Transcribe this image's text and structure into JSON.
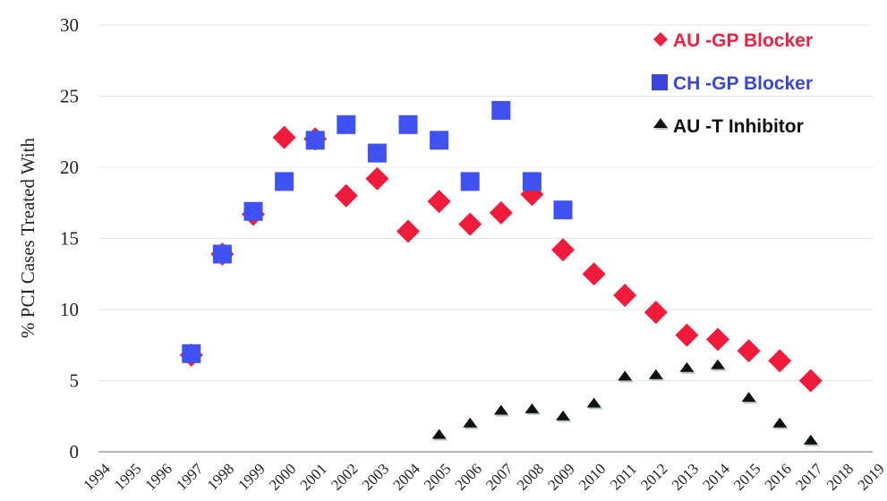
{
  "chart_data": {
    "type": "scatter",
    "xlabel": "",
    "ylabel": "% PCI Cases Treated With",
    "xlim": [
      1994,
      2019
    ],
    "ylim": [
      0,
      30
    ],
    "x_ticks": [
      "1994",
      "1995",
      "1996",
      "1997",
      "1998",
      "1999",
      "2000",
      "2001",
      "2002",
      "2003",
      "2004",
      "2005",
      "2006",
      "2007",
      "2008",
      "2009",
      "2010",
      "2011",
      "2012",
      "2013",
      "2014",
      "2015",
      "2016",
      "2017",
      "2018",
      "2019"
    ],
    "y_ticks": [
      "0",
      "5",
      "10",
      "15",
      "20",
      "25",
      "30"
    ],
    "grid": "horizontal",
    "legend_position": "top-right",
    "series": [
      {
        "name": "AU -GP Blocker",
        "marker": "diamond",
        "color": "#f01a3a",
        "legend_color": "#e8223f",
        "x": [
          1997,
          1998,
          1999,
          2000,
          2001,
          2002,
          2003,
          2004,
          2005,
          2006,
          2007,
          2008,
          2009,
          2010,
          2011,
          2012,
          2013,
          2014,
          2015,
          2016,
          2017
        ],
        "values": [
          6.8,
          13.9,
          16.7,
          22.1,
          22.0,
          18.0,
          19.2,
          15.5,
          17.6,
          16.0,
          16.8,
          18.1,
          14.2,
          12.5,
          11.0,
          9.8,
          8.2,
          7.9,
          7.1,
          6.4,
          5.0
        ]
      },
      {
        "name": "CH -GP Blocker",
        "marker": "square",
        "color": "#3f51f0",
        "legend_color": "#3a46d6",
        "x": [
          1997,
          1998,
          1999,
          2000,
          2001,
          2002,
          2003,
          2004,
          2005,
          2006,
          2007,
          2008,
          2009
        ],
        "values": [
          6.9,
          13.9,
          16.9,
          19.0,
          21.9,
          23.0,
          21.0,
          23.0,
          21.9,
          19.0,
          24.0,
          19.0,
          17.0
        ]
      },
      {
        "name": "AU -T Inhibitor",
        "marker": "triangle",
        "color": "#111111",
        "legend_color": "#111111",
        "x": [
          2005,
          2006,
          2007,
          2008,
          2009,
          2010,
          2011,
          2012,
          2013,
          2014,
          2015,
          2016,
          2017
        ],
        "values": [
          1.1,
          1.9,
          2.8,
          2.9,
          2.4,
          3.3,
          5.2,
          5.3,
          5.8,
          6.0,
          3.7,
          1.9,
          0.7
        ]
      }
    ]
  }
}
